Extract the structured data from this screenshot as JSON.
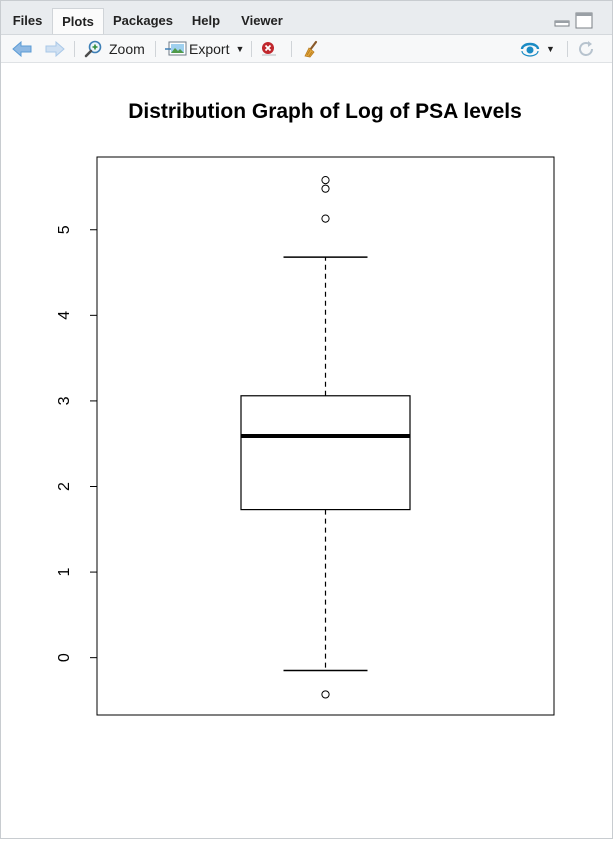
{
  "tabs": [
    {
      "label": "Files"
    },
    {
      "label": "Plots"
    },
    {
      "label": "Packages"
    },
    {
      "label": "Help"
    },
    {
      "label": "Viewer"
    }
  ],
  "active_tab": "Plots",
  "toolbar": {
    "zoom_label": "Zoom",
    "export_label": "Export"
  },
  "icons": {
    "back": "arrow-left-icon",
    "forward": "arrow-right-icon",
    "zoom": "magnifier-icon",
    "export": "image-export-icon",
    "remove": "remove-plot-icon",
    "clear": "broom-icon",
    "publish": "publish-icon",
    "refresh": "refresh-icon"
  },
  "colors": {
    "accent": "#1a8bc4",
    "remove_red": "#c0272d",
    "nav_arrow": "#5b9bd5"
  },
  "chart_data": {
    "type": "boxplot",
    "title": "Distribution Graph of Log of PSA levels",
    "xlabel": "",
    "ylabel": "",
    "ylim": [
      -0.67,
      5.85
    ],
    "yticks": [
      0,
      1,
      2,
      3,
      4,
      5
    ],
    "ytick_labels": [
      "0",
      "1",
      "2",
      "3",
      "4",
      "5"
    ],
    "series": [
      {
        "whisker_low": -0.15,
        "q1": 1.73,
        "median": 2.59,
        "q3": 3.06,
        "whisker_high": 4.68,
        "outliers": [
          5.58,
          5.48,
          5.13,
          -0.43
        ]
      }
    ]
  }
}
